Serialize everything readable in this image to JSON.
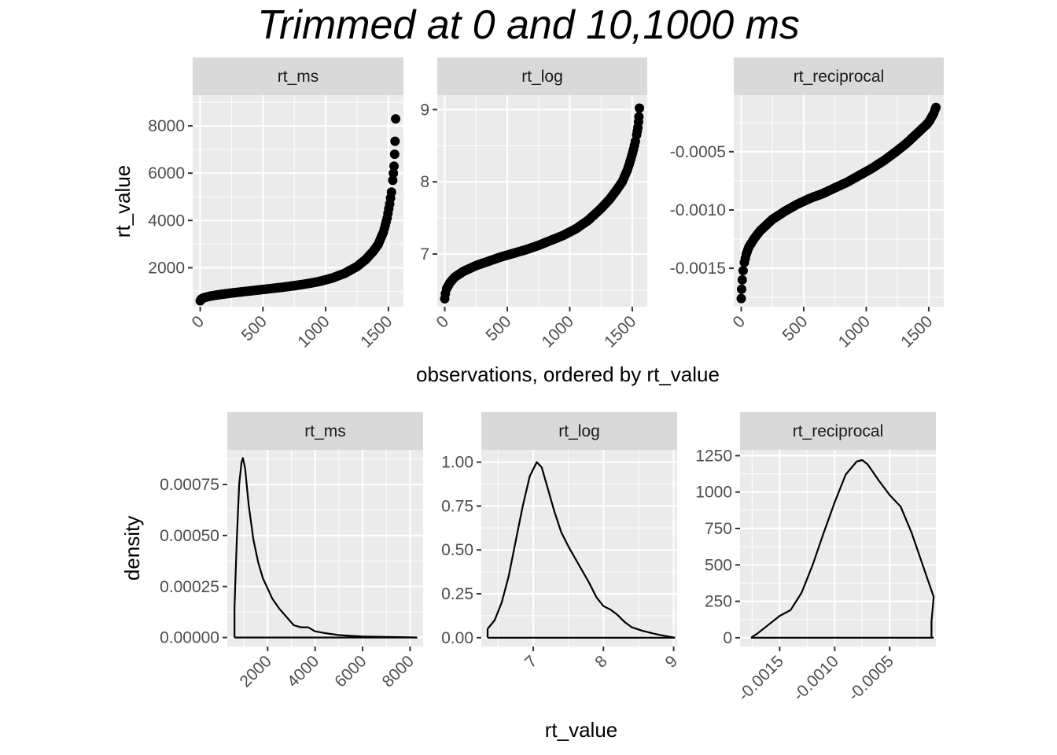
{
  "title": "Trimmed at 0 and 10,1000 ms",
  "colors": {
    "panel_background": "#ebebeb",
    "strip_background": "#d9d9d9",
    "grid": "#ffffff",
    "marks": "#000000",
    "tick_label": "#4d4d4d"
  },
  "chart_data": [
    {
      "type": "scatter",
      "description": "Sorted observations by rt_value, faceted by transform",
      "xlabel": "observations, ordered by rt_value",
      "ylabel": "rt_value",
      "panels": [
        {
          "strip": "rt_ms",
          "xlim": [
            -60,
            1620
          ],
          "ylim": [
            350,
            9300
          ],
          "x_ticks": [
            0,
            500,
            1000,
            1500
          ],
          "x_tick_labels": [
            "0",
            "500",
            "1000",
            "1500"
          ],
          "y_ticks": [
            2000,
            4000,
            6000,
            8000
          ],
          "y_tick_labels": [
            "2000",
            "4000",
            "6000",
            "8000"
          ],
          "points": [
            [
              0,
              600
            ],
            [
              5,
              650
            ],
            [
              15,
              700
            ],
            [
              40,
              750
            ],
            [
              80,
              800
            ],
            [
              150,
              860
            ],
            [
              250,
              930
            ],
            [
              350,
              990
            ],
            [
              450,
              1050
            ],
            [
              550,
              1110
            ],
            [
              650,
              1170
            ],
            [
              750,
              1240
            ],
            [
              850,
              1320
            ],
            [
              950,
              1420
            ],
            [
              1050,
              1560
            ],
            [
              1150,
              1760
            ],
            [
              1250,
              2050
            ],
            [
              1320,
              2350
            ],
            [
              1380,
              2700
            ],
            [
              1420,
              3000
            ],
            [
              1460,
              3500
            ],
            [
              1490,
              4100
            ],
            [
              1510,
              4700
            ],
            [
              1525,
              5200
            ],
            [
              1535,
              5700
            ],
            [
              1540,
              6000
            ],
            [
              1545,
              6300
            ],
            [
              1550,
              6800
            ],
            [
              1553,
              7350
            ],
            [
              1558,
              8300
            ]
          ]
        },
        {
          "strip": "rt_log",
          "xlim": [
            -60,
            1620
          ],
          "ylim": [
            6.27,
            9.2
          ],
          "x_ticks": [
            0,
            500,
            1000,
            1500
          ],
          "x_tick_labels": [
            "0",
            "500",
            "1000",
            "1500"
          ],
          "y_ticks": [
            7,
            8,
            9
          ],
          "y_tick_labels": [
            "7",
            "8",
            "9"
          ],
          "points": [
            [
              0,
              6.38
            ],
            [
              5,
              6.45
            ],
            [
              15,
              6.52
            ],
            [
              40,
              6.6
            ],
            [
              80,
              6.68
            ],
            [
              150,
              6.76
            ],
            [
              250,
              6.84
            ],
            [
              350,
              6.9
            ],
            [
              450,
              6.96
            ],
            [
              550,
              7.01
            ],
            [
              650,
              7.06
            ],
            [
              750,
              7.12
            ],
            [
              850,
              7.19
            ],
            [
              950,
              7.26
            ],
            [
              1050,
              7.35
            ],
            [
              1150,
              7.47
            ],
            [
              1250,
              7.63
            ],
            [
              1320,
              7.76
            ],
            [
              1380,
              7.9
            ],
            [
              1420,
              8.0
            ],
            [
              1460,
              8.16
            ],
            [
              1490,
              8.32
            ],
            [
              1510,
              8.45
            ],
            [
              1525,
              8.56
            ],
            [
              1535,
              8.65
            ],
            [
              1540,
              8.7
            ],
            [
              1545,
              8.75
            ],
            [
              1550,
              8.83
            ],
            [
              1553,
              8.9
            ],
            [
              1558,
              9.02
            ]
          ]
        },
        {
          "strip": "rt_reciprocal",
          "xlim": [
            -60,
            1620
          ],
          "ylim": [
            -0.00183,
            -1.5e-05
          ],
          "x_ticks": [
            0,
            500,
            1000,
            1500
          ],
          "x_tick_labels": [
            "0",
            "500",
            "1000",
            "1500"
          ],
          "y_ticks": [
            -0.0015,
            -0.001,
            -0.0005
          ],
          "y_tick_labels": [
            "-0.0015",
            "-0.0010",
            "-0.0005"
          ],
          "points": [
            [
              0,
              -0.00176
            ],
            [
              3,
              -0.00168
            ],
            [
              8,
              -0.0016
            ],
            [
              15,
              -0.00152
            ],
            [
              25,
              -0.00145
            ],
            [
              40,
              -0.00138
            ],
            [
              60,
              -0.00132
            ],
            [
              100,
              -0.00125
            ],
            [
              150,
              -0.00118
            ],
            [
              250,
              -0.00108
            ],
            [
              350,
              -0.00101
            ],
            [
              450,
              -0.00095
            ],
            [
              550,
              -0.0009
            ],
            [
              650,
              -0.00086
            ],
            [
              750,
              -0.00081
            ],
            [
              850,
              -0.00076
            ],
            [
              950,
              -0.0007
            ],
            [
              1050,
              -0.00064
            ],
            [
              1150,
              -0.00057
            ],
            [
              1250,
              -0.00049
            ],
            [
              1320,
              -0.00043
            ],
            [
              1380,
              -0.00037
            ],
            [
              1420,
              -0.00033
            ],
            [
              1460,
              -0.00029
            ],
            [
              1490,
              -0.00026
            ],
            [
              1510,
              -0.00023
            ],
            [
              1525,
              -0.0002
            ],
            [
              1540,
              -0.00017
            ],
            [
              1550,
              -0.00014
            ],
            [
              1558,
              -0.00012
            ]
          ]
        }
      ]
    },
    {
      "type": "line",
      "description": "Density of rt_value, faceted by transform",
      "xlabel": "rt_value",
      "ylabel": "density",
      "panels": [
        {
          "strip": "rt_ms",
          "xlim": [
            300,
            8550
          ],
          "ylim": [
            -4.4e-05,
            0.00092
          ],
          "x_ticks": [
            2000,
            4000,
            6000,
            8000
          ],
          "x_tick_labels": [
            "2000",
            "4000",
            "6000",
            "8000"
          ],
          "y_ticks": [
            0,
            0.00025,
            0.0005,
            0.00075
          ],
          "y_tick_labels": [
            "0.00000",
            "0.00025",
            "0.00050",
            "0.00075"
          ],
          "points": [
            [
              605,
              0
            ],
            [
              605,
              0.00015
            ],
            [
              700,
              0.00048
            ],
            [
              800,
              0.00075
            ],
            [
              900,
              0.00086
            ],
            [
              960,
              0.00088
            ],
            [
              1050,
              0.00083
            ],
            [
              1200,
              0.00065
            ],
            [
              1400,
              0.00048
            ],
            [
              1600,
              0.00037
            ],
            [
              1800,
              0.00029
            ],
            [
              2000,
              0.00024
            ],
            [
              2200,
              0.00019
            ],
            [
              2500,
              0.00014
            ],
            [
              2800,
              0.0001
            ],
            [
              3100,
              6e-05
            ],
            [
              3400,
              5e-05
            ],
            [
              3700,
              5e-05
            ],
            [
              4000,
              3e-05
            ],
            [
              4500,
              2e-05
            ],
            [
              5000,
              1.2e-05
            ],
            [
              5500,
              8e-06
            ],
            [
              6000,
              5e-06
            ],
            [
              6500,
              4e-06
            ],
            [
              7000,
              3e-06
            ],
            [
              7500,
              2e-06
            ],
            [
              8000,
              1e-06
            ],
            [
              8300,
              0
            ]
          ]
        },
        {
          "strip": "rt_log",
          "xlim": [
            6.26,
            9.05
          ],
          "ylim": [
            -0.05,
            1.07
          ],
          "x_ticks": [
            7,
            8,
            9
          ],
          "x_tick_labels": [
            "7",
            "8",
            "9"
          ],
          "y_ticks": [
            0,
            0.25,
            0.5,
            0.75,
            1
          ],
          "y_tick_labels": [
            "0.00",
            "0.25",
            "0.50",
            "0.75",
            "1.00"
          ],
          "points": [
            [
              6.35,
              0
            ],
            [
              6.35,
              0.05
            ],
            [
              6.45,
              0.1
            ],
            [
              6.55,
              0.2
            ],
            [
              6.65,
              0.35
            ],
            [
              6.75,
              0.55
            ],
            [
              6.85,
              0.75
            ],
            [
              6.95,
              0.92
            ],
            [
              7.05,
              1.0
            ],
            [
              7.12,
              0.97
            ],
            [
              7.2,
              0.86
            ],
            [
              7.3,
              0.72
            ],
            [
              7.4,
              0.6
            ],
            [
              7.5,
              0.52
            ],
            [
              7.6,
              0.45
            ],
            [
              7.7,
              0.38
            ],
            [
              7.8,
              0.31
            ],
            [
              7.9,
              0.23
            ],
            [
              8.0,
              0.18
            ],
            [
              8.1,
              0.16
            ],
            [
              8.2,
              0.13
            ],
            [
              8.3,
              0.09
            ],
            [
              8.4,
              0.06
            ],
            [
              8.55,
              0.04
            ],
            [
              8.7,
              0.025
            ],
            [
              8.85,
              0.012
            ],
            [
              9.02,
              0
            ]
          ]
        },
        {
          "strip": "rt_reciprocal",
          "xlim": [
            -0.00186,
            -8e-05
          ],
          "ylim": [
            -60,
            1290
          ],
          "x_ticks": [
            -0.0015,
            -0.001,
            -0.0005
          ],
          "x_tick_labels": [
            "-0.0015",
            "-0.0010",
            "-0.0005"
          ],
          "y_ticks": [
            0,
            250,
            500,
            750,
            1000,
            1250
          ],
          "y_tick_labels": [
            "0",
            "250",
            "500",
            "750",
            "1000",
            "1250"
          ],
          "points": [
            [
              -0.00176,
              0
            ],
            [
              -0.0017,
              30
            ],
            [
              -0.0016,
              90
            ],
            [
              -0.0015,
              150
            ],
            [
              -0.0014,
              190
            ],
            [
              -0.0013,
              310
            ],
            [
              -0.0012,
              500
            ],
            [
              -0.0011,
              720
            ],
            [
              -0.001,
              930
            ],
            [
              -0.0009,
              1120
            ],
            [
              -0.0008,
              1210
            ],
            [
              -0.00075,
              1220
            ],
            [
              -0.0007,
              1190
            ],
            [
              -0.0006,
              1080
            ],
            [
              -0.0005,
              980
            ],
            [
              -0.0004,
              900
            ],
            [
              -0.0003,
              720
            ],
            [
              -0.0002,
              500
            ],
            [
              -0.0001,
              280
            ],
            [
              -0.00012,
              110
            ],
            [
              -0.00012,
              0
            ]
          ]
        }
      ]
    }
  ]
}
